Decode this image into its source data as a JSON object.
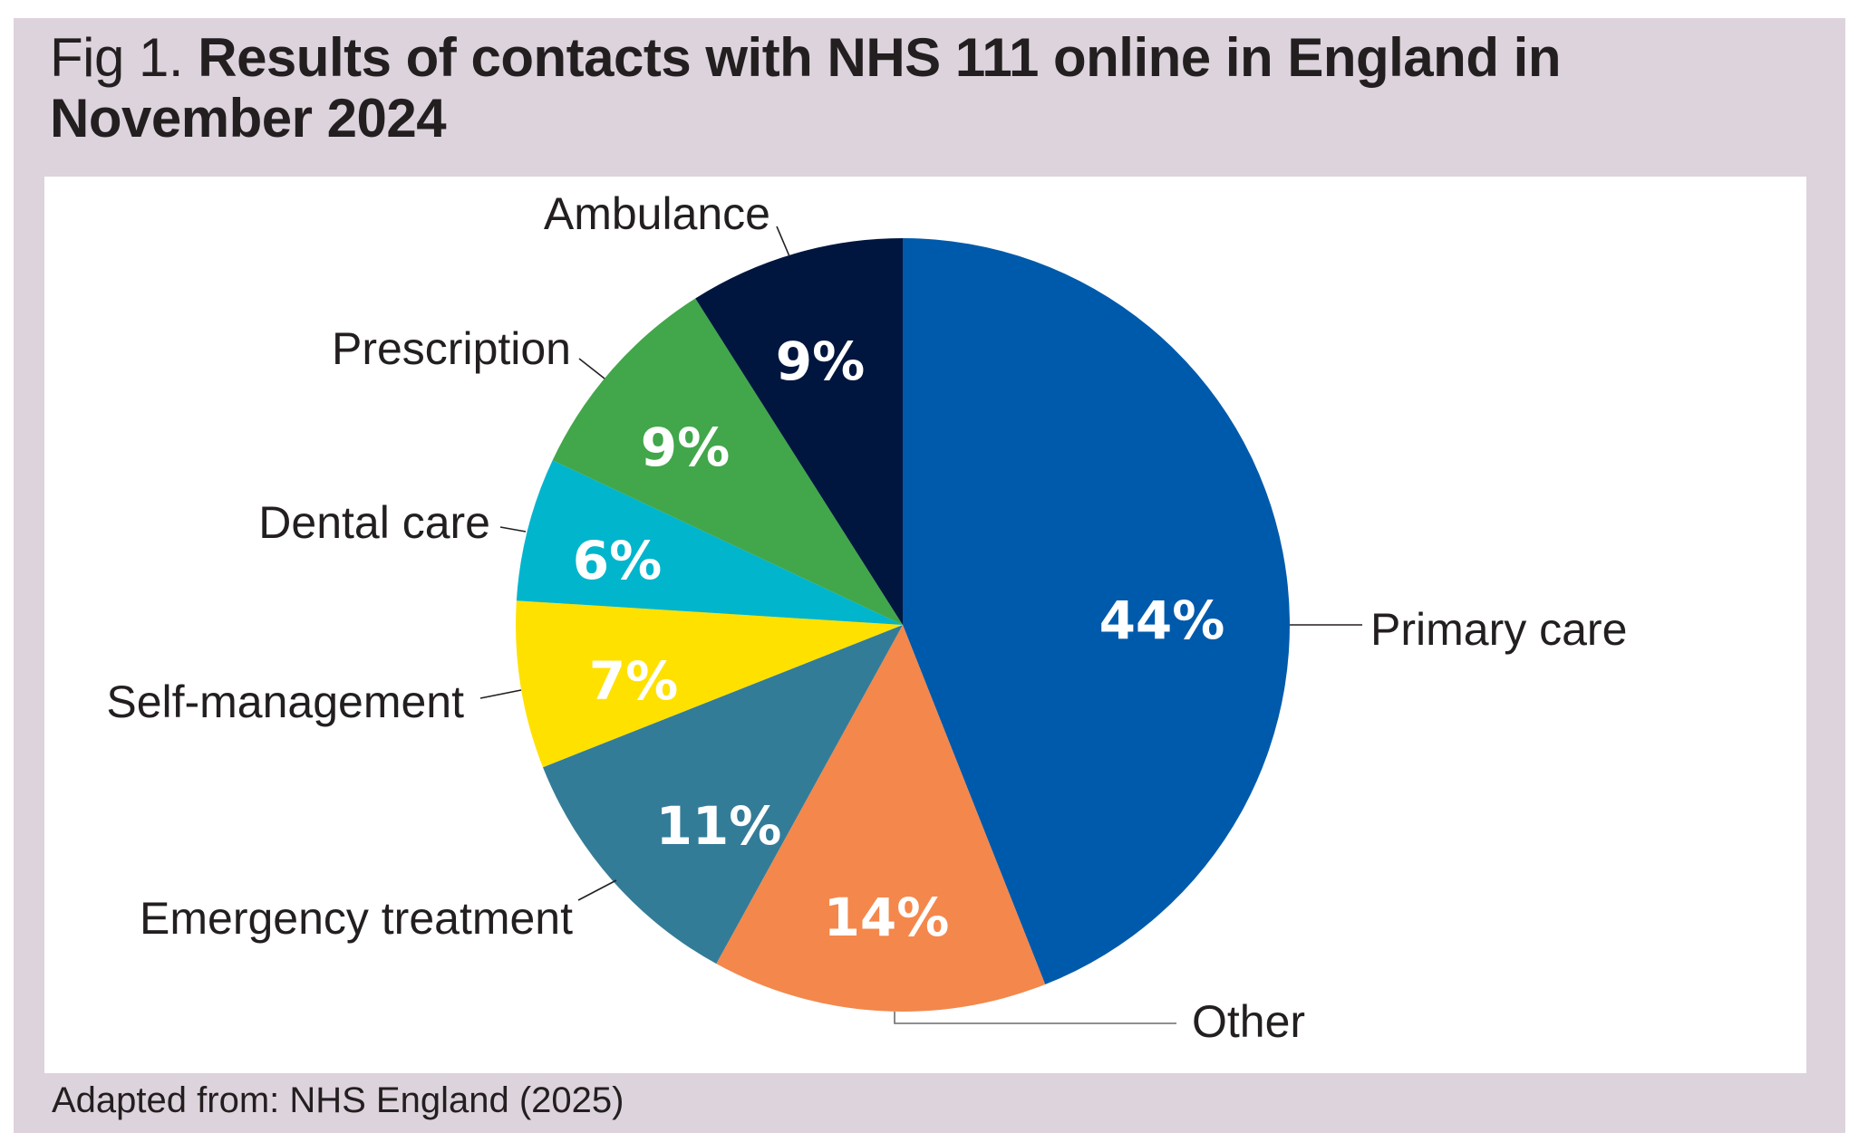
{
  "figure": {
    "prefix": "Fig 1.",
    "title": "Results of contacts with NHS 111 online in England in November 2024",
    "source": "Adapted from: NHS England (2025)"
  },
  "colors": {
    "background": "#ddd3dc",
    "panel": "#ffffff",
    "text": "#231f20"
  },
  "chart_data": {
    "type": "pie",
    "title": "Results of contacts with NHS 111 online in England in November 2024",
    "subtitle": "Fig 1.",
    "source": "Adapted from: NHS England (2025)",
    "unit": "%",
    "start_angle": "12 o'clock, clockwise",
    "categories": [
      "Primary care",
      "Other",
      "Emergency treatment",
      "Self-management",
      "Dental care",
      "Prescription",
      "Ambulance"
    ],
    "values": [
      44,
      14,
      11,
      7,
      6,
      9,
      9
    ],
    "labels": [
      "44%",
      "14%",
      "11%",
      "7%",
      "6%",
      "9%",
      "9%"
    ],
    "colors": [
      "#005aab",
      "#f4874b",
      "#337c98",
      "#ffe100",
      "#00b5cc",
      "#41a74a",
      "#00163f"
    ],
    "legend": "none (direct labels with leader lines)"
  }
}
